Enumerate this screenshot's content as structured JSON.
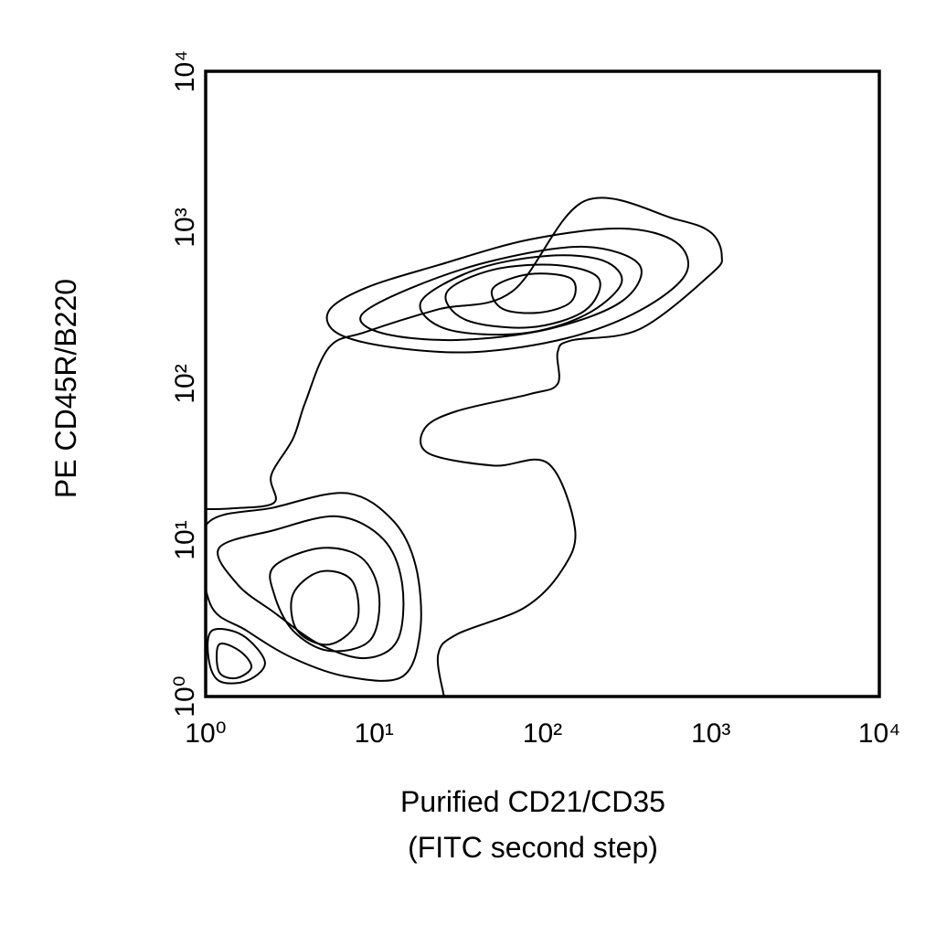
{
  "chart_data": {
    "type": "contour",
    "xlabel": [
      "Purified CD21/CD35",
      "(FITC second step)"
    ],
    "ylabel": "PE CD45R/B220",
    "xscale": "log",
    "yscale": "log",
    "xlim": [
      1,
      10000
    ],
    "ylim": [
      1,
      10000
    ],
    "xticks": [
      {
        "value": 1,
        "label": "10⁰"
      },
      {
        "value": 10,
        "label": "10¹"
      },
      {
        "value": 100,
        "label": "10²"
      },
      {
        "value": 1000,
        "label": "10³"
      },
      {
        "value": 10000,
        "label": "10⁴"
      }
    ],
    "yticks": [
      {
        "value": 1,
        "label": "10⁰"
      },
      {
        "value": 10,
        "label": "10¹"
      },
      {
        "value": 100,
        "label": "10²"
      },
      {
        "value": 1000,
        "label": "10³"
      },
      {
        "value": 10000,
        "label": "10⁴"
      }
    ],
    "color": "#000000",
    "contours": [
      {
        "closed": false,
        "x": [
          1,
          1.45,
          2.55,
          2.45,
          3.3,
          3.9,
          5.4,
          8.9,
          24,
          66,
          178,
          621,
          1000,
          1160,
          1000,
          377,
          149,
          123,
          123,
          84,
          31,
          20,
          21,
          51,
          108,
          156,
          130,
          78,
          31,
          24,
          26
        ],
        "y": [
          15.8,
          16,
          17.4,
          26,
          44.6,
          76,
          171,
          215,
          300,
          390,
          1480,
          1130,
          930,
          660,
          504,
          224,
          190,
          160,
          100,
          86,
          67,
          52,
          36,
          30,
          31,
          11.8,
          6.4,
          3.7,
          2.5,
          1.85,
          1
        ]
      },
      {
        "closed": true,
        "x": [
          5.4,
          8.9,
          24,
          84,
          294,
          621,
          708,
          377,
          139,
          40,
          13,
          6.1
        ],
        "y": [
          294,
          411,
          575,
          839,
          986,
          806,
          504,
          294,
          196,
          160,
          171,
          210
        ]
      },
      {
        "closed": true,
        "x": [
          8.4,
          16.6,
          51,
          178,
          377,
          294,
          108,
          31,
          11.4
        ],
        "y": [
          275,
          411,
          615,
          754,
          575,
          336,
          224,
          191,
          210
        ]
      },
      {
        "closed": true,
        "x": [
          19,
          40,
          108,
          229,
          294,
          178,
          75,
          27
        ],
        "y": [
          336,
          538,
          660,
          615,
          440,
          275,
          210,
          224
        ]
      },
      {
        "closed": true,
        "x": [
          27,
          51,
          123,
          216,
          178,
          84,
          35
        ],
        "y": [
          385,
          538,
          575,
          471,
          294,
          230,
          257
        ]
      },
      {
        "closed": true,
        "x": [
          51,
          84,
          148,
          148,
          96,
          58
        ],
        "y": [
          411,
          504,
          471,
          336,
          286,
          302
        ]
      },
      {
        "closed": true,
        "x": [
          1,
          2.55,
          6.9,
          13,
          17.7,
          18.8,
          14.7,
          6.9,
          3.3,
          1.75,
          1.06
        ],
        "y": [
          12.4,
          16.2,
          20,
          13.3,
          6.8,
          2.64,
          1.34,
          1.34,
          1.76,
          2.64,
          3.95
        ]
      },
      {
        "closed": true,
        "x": [
          1.2,
          2.55,
          6.1,
          11.4,
          14.7,
          13.8,
          8.9,
          4.77,
          2.55,
          1.55
        ],
        "y": [
          8.9,
          11.6,
          14.2,
          10.1,
          5.2,
          2.3,
          1.76,
          2.15,
          3.45,
          5.2
        ]
      },
      {
        "closed": true,
        "x": [
          2.55,
          4.8,
          8.4,
          10.7,
          9.5,
          5.4,
          3.3,
          2.55
        ],
        "y": [
          6.8,
          8.9,
          7.74,
          4.52,
          2.3,
          1.96,
          2.64,
          4.52
        ]
      },
      {
        "closed": true,
        "x": [
          3.3,
          4.8,
          7.4,
          7.9,
          5.4,
          3.5
        ],
        "y": [
          4.5,
          6.3,
          5.5,
          3.0,
          2.15,
          2.64
        ]
      },
      {
        "closed": true,
        "x": [
          1.09,
          1.65,
          2.25,
          1.75,
          1.2,
          1.04
        ],
        "y": [
          2.64,
          2.47,
          1.65,
          1.26,
          1.26,
          1.76
        ]
      },
      {
        "closed": true,
        "x": [
          1.2,
          1.59,
          1.87,
          1.51,
          1.2
        ],
        "y": [
          2.15,
          1.96,
          1.54,
          1.31,
          1.44
        ]
      }
    ]
  }
}
